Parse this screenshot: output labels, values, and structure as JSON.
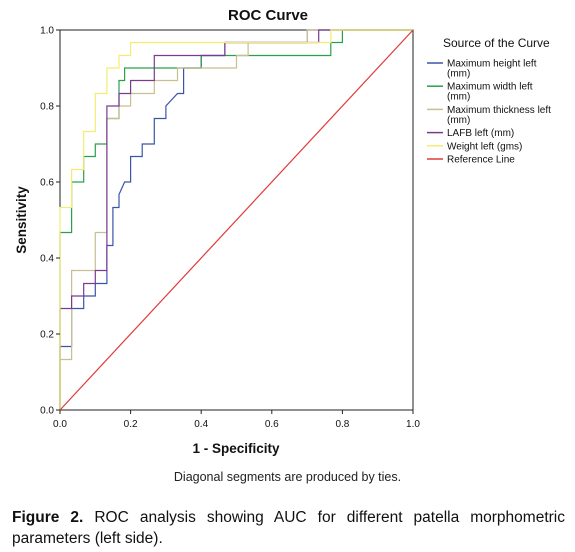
{
  "chart_data": {
    "type": "line",
    "title": "ROC Curve",
    "xlabel": "1 - Specificity",
    "ylabel": "Sensitivity",
    "xlim": [
      0,
      1
    ],
    "ylim": [
      0,
      1
    ],
    "xticks": [
      "0.0",
      "0.2",
      "0.4",
      "0.6",
      "0.8",
      "1.0"
    ],
    "yticks": [
      "0.0",
      "0.2",
      "0.4",
      "0.6",
      "0.8",
      "1.0"
    ],
    "legend_title": "Source of the Curve",
    "legend_position": "right",
    "grid": false,
    "series": [
      {
        "name": "Maximum height left (mm)",
        "color": "#3a55a8",
        "points": [
          [
            0,
            0
          ],
          [
            0,
            0.167
          ],
          [
            0.033,
            0.167
          ],
          [
            0.033,
            0.267
          ],
          [
            0.067,
            0.267
          ],
          [
            0.067,
            0.3
          ],
          [
            0.1,
            0.3
          ],
          [
            0.1,
            0.333
          ],
          [
            0.133,
            0.333
          ],
          [
            0.133,
            0.433
          ],
          [
            0.15,
            0.433
          ],
          [
            0.15,
            0.533
          ],
          [
            0.167,
            0.533
          ],
          [
            0.167,
            0.567
          ],
          [
            0.183,
            0.6
          ],
          [
            0.2,
            0.6
          ],
          [
            0.2,
            0.667
          ],
          [
            0.233,
            0.667
          ],
          [
            0.233,
            0.7
          ],
          [
            0.267,
            0.7
          ],
          [
            0.267,
            0.767
          ],
          [
            0.3,
            0.767
          ],
          [
            0.3,
            0.8
          ],
          [
            0.333,
            0.833
          ],
          [
            0.35,
            0.833
          ],
          [
            0.35,
            0.9
          ],
          [
            0.4,
            0.9
          ],
          [
            0.4,
            0.933
          ],
          [
            0.467,
            0.933
          ],
          [
            0.467,
            0.967
          ],
          [
            0.7,
            0.967
          ],
          [
            0.7,
            1
          ],
          [
            1,
            1
          ]
        ]
      },
      {
        "name": "Maximum width left (mm)",
        "color": "#2aa04a",
        "points": [
          [
            0,
            0
          ],
          [
            0,
            0.467
          ],
          [
            0.033,
            0.467
          ],
          [
            0.033,
            0.6
          ],
          [
            0.067,
            0.6
          ],
          [
            0.067,
            0.667
          ],
          [
            0.1,
            0.667
          ],
          [
            0.1,
            0.7
          ],
          [
            0.133,
            0.7
          ],
          [
            0.133,
            0.767
          ],
          [
            0.167,
            0.767
          ],
          [
            0.167,
            0.867
          ],
          [
            0.183,
            0.867
          ],
          [
            0.183,
            0.9
          ],
          [
            0.4,
            0.9
          ],
          [
            0.4,
            0.933
          ],
          [
            0.533,
            0.933
          ],
          [
            0.533,
            0.933
          ],
          [
            0.767,
            0.933
          ],
          [
            0.767,
            0.967
          ],
          [
            0.8,
            0.967
          ],
          [
            0.8,
            1
          ],
          [
            1,
            1
          ]
        ]
      },
      {
        "name": "Maximum thickness left (mm)",
        "color": "#c8bf90",
        "points": [
          [
            0,
            0
          ],
          [
            0,
            0.133
          ],
          [
            0.033,
            0.133
          ],
          [
            0.033,
            0.3
          ],
          [
            0.033,
            0.367
          ],
          [
            0.1,
            0.367
          ],
          [
            0.1,
            0.433
          ],
          [
            0.1,
            0.467
          ],
          [
            0.133,
            0.467
          ],
          [
            0.133,
            0.767
          ],
          [
            0.167,
            0.767
          ],
          [
            0.167,
            0.8
          ],
          [
            0.2,
            0.8
          ],
          [
            0.2,
            0.833
          ],
          [
            0.267,
            0.833
          ],
          [
            0.267,
            0.867
          ],
          [
            0.333,
            0.867
          ],
          [
            0.333,
            0.9
          ],
          [
            0.5,
            0.9
          ],
          [
            0.5,
            0.933
          ],
          [
            0.533,
            0.933
          ],
          [
            0.533,
            0.967
          ],
          [
            0.7,
            0.967
          ],
          [
            0.7,
            1
          ],
          [
            1,
            1
          ]
        ]
      },
      {
        "name": "LAFB left (mm)",
        "color": "#7b3a8f",
        "points": [
          [
            0,
            0
          ],
          [
            0,
            0.267
          ],
          [
            0.033,
            0.267
          ],
          [
            0.033,
            0.3
          ],
          [
            0.067,
            0.3
          ],
          [
            0.067,
            0.333
          ],
          [
            0.1,
            0.333
          ],
          [
            0.1,
            0.367
          ],
          [
            0.133,
            0.367
          ],
          [
            0.133,
            0.433
          ],
          [
            0.133,
            0.533
          ],
          [
            0.133,
            0.8
          ],
          [
            0.167,
            0.8
          ],
          [
            0.167,
            0.833
          ],
          [
            0.2,
            0.833
          ],
          [
            0.2,
            0.867
          ],
          [
            0.267,
            0.867
          ],
          [
            0.267,
            0.933
          ],
          [
            0.467,
            0.933
          ],
          [
            0.467,
            0.967
          ],
          [
            0.733,
            0.967
          ],
          [
            0.733,
            1
          ],
          [
            1,
            1
          ]
        ]
      },
      {
        "name": "Weight left (gms)",
        "color": "#f3ec72",
        "points": [
          [
            0,
            0
          ],
          [
            0,
            0.533
          ],
          [
            0.033,
            0.533
          ],
          [
            0.033,
            0.633
          ],
          [
            0.067,
            0.633
          ],
          [
            0.067,
            0.733
          ],
          [
            0.1,
            0.733
          ],
          [
            0.1,
            0.833
          ],
          [
            0.133,
            0.833
          ],
          [
            0.133,
            0.9
          ],
          [
            0.167,
            0.9
          ],
          [
            0.167,
            0.933
          ],
          [
            0.2,
            0.933
          ],
          [
            0.2,
            0.967
          ],
          [
            0.767,
            0.967
          ],
          [
            0.767,
            1
          ],
          [
            1,
            1
          ]
        ]
      },
      {
        "name": "Reference Line",
        "color": "#e03a3a",
        "points": [
          [
            0,
            0
          ],
          [
            1,
            1
          ]
        ]
      }
    ]
  },
  "note": "Diagonal segments are produced by ties.",
  "caption": {
    "label": "Figure 2.",
    "text": " ROC analysis showing AUC for different patella morphometric parameters (left side)."
  }
}
